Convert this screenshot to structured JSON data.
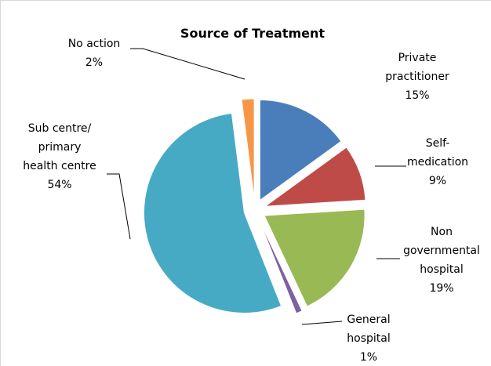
{
  "chart_data": {
    "type": "pie",
    "title": "Source of Treatment",
    "categories": [
      "Private practitioner",
      "Self-medication",
      "Non governmental hospital",
      "General hospital",
      "Sub centre/ primary health centre",
      "No action"
    ],
    "values": [
      15,
      9,
      19,
      1,
      54,
      2
    ],
    "value_labels": [
      "15%",
      "9%",
      "19%",
      "1%",
      "54%",
      "2%"
    ],
    "colors": [
      "#4a7ebb",
      "#be4b48",
      "#98b954",
      "#7d60a0",
      "#46aac5",
      "#f79646"
    ]
  }
}
